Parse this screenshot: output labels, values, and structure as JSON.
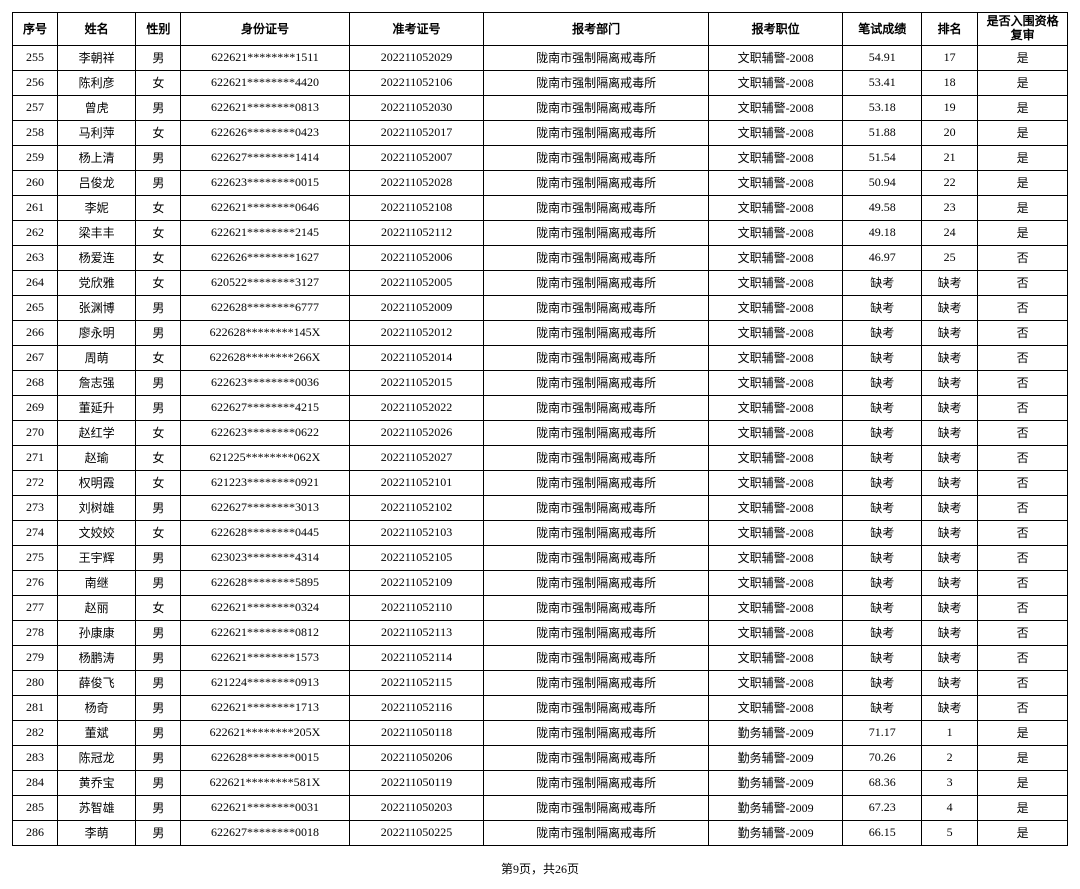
{
  "headers": {
    "seq": "序号",
    "name": "姓名",
    "sex": "性别",
    "id": "身份证号",
    "exam": "准考证号",
    "dept": "报考部门",
    "pos": "报考职位",
    "score": "笔试成绩",
    "rank": "排名",
    "pass": "是否入围资格复审"
  },
  "rows": [
    {
      "seq": "255",
      "name": "李朝祥",
      "sex": "男",
      "id": "622621********1511",
      "exam": "202211052029",
      "dept": "陇南市强制隔离戒毒所",
      "pos": "文职辅警-2008",
      "score": "54.91",
      "rank": "17",
      "pass": "是"
    },
    {
      "seq": "256",
      "name": "陈利彦",
      "sex": "女",
      "id": "622621********4420",
      "exam": "202211052106",
      "dept": "陇南市强制隔离戒毒所",
      "pos": "文职辅警-2008",
      "score": "53.41",
      "rank": "18",
      "pass": "是"
    },
    {
      "seq": "257",
      "name": "曾虎",
      "sex": "男",
      "id": "622621********0813",
      "exam": "202211052030",
      "dept": "陇南市强制隔离戒毒所",
      "pos": "文职辅警-2008",
      "score": "53.18",
      "rank": "19",
      "pass": "是"
    },
    {
      "seq": "258",
      "name": "马利萍",
      "sex": "女",
      "id": "622626********0423",
      "exam": "202211052017",
      "dept": "陇南市强制隔离戒毒所",
      "pos": "文职辅警-2008",
      "score": "51.88",
      "rank": "20",
      "pass": "是"
    },
    {
      "seq": "259",
      "name": "杨上清",
      "sex": "男",
      "id": "622627********1414",
      "exam": "202211052007",
      "dept": "陇南市强制隔离戒毒所",
      "pos": "文职辅警-2008",
      "score": "51.54",
      "rank": "21",
      "pass": "是"
    },
    {
      "seq": "260",
      "name": "吕俊龙",
      "sex": "男",
      "id": "622623********0015",
      "exam": "202211052028",
      "dept": "陇南市强制隔离戒毒所",
      "pos": "文职辅警-2008",
      "score": "50.94",
      "rank": "22",
      "pass": "是"
    },
    {
      "seq": "261",
      "name": "李妮",
      "sex": "女",
      "id": "622621********0646",
      "exam": "202211052108",
      "dept": "陇南市强制隔离戒毒所",
      "pos": "文职辅警-2008",
      "score": "49.58",
      "rank": "23",
      "pass": "是"
    },
    {
      "seq": "262",
      "name": "梁丰丰",
      "sex": "女",
      "id": "622621********2145",
      "exam": "202211052112",
      "dept": "陇南市强制隔离戒毒所",
      "pos": "文职辅警-2008",
      "score": "49.18",
      "rank": "24",
      "pass": "是"
    },
    {
      "seq": "263",
      "name": "杨爱连",
      "sex": "女",
      "id": "622626********1627",
      "exam": "202211052006",
      "dept": "陇南市强制隔离戒毒所",
      "pos": "文职辅警-2008",
      "score": "46.97",
      "rank": "25",
      "pass": "否"
    },
    {
      "seq": "264",
      "name": "党欣雅",
      "sex": "女",
      "id": "620522********3127",
      "exam": "202211052005",
      "dept": "陇南市强制隔离戒毒所",
      "pos": "文职辅警-2008",
      "score": "缺考",
      "rank": "缺考",
      "pass": "否"
    },
    {
      "seq": "265",
      "name": "张渊博",
      "sex": "男",
      "id": "622628********6777",
      "exam": "202211052009",
      "dept": "陇南市强制隔离戒毒所",
      "pos": "文职辅警-2008",
      "score": "缺考",
      "rank": "缺考",
      "pass": "否"
    },
    {
      "seq": "266",
      "name": "廖永明",
      "sex": "男",
      "id": "622628********145X",
      "exam": "202211052012",
      "dept": "陇南市强制隔离戒毒所",
      "pos": "文职辅警-2008",
      "score": "缺考",
      "rank": "缺考",
      "pass": "否"
    },
    {
      "seq": "267",
      "name": "周萌",
      "sex": "女",
      "id": "622628********266X",
      "exam": "202211052014",
      "dept": "陇南市强制隔离戒毒所",
      "pos": "文职辅警-2008",
      "score": "缺考",
      "rank": "缺考",
      "pass": "否"
    },
    {
      "seq": "268",
      "name": "詹志强",
      "sex": "男",
      "id": "622623********0036",
      "exam": "202211052015",
      "dept": "陇南市强制隔离戒毒所",
      "pos": "文职辅警-2008",
      "score": "缺考",
      "rank": "缺考",
      "pass": "否"
    },
    {
      "seq": "269",
      "name": "董延升",
      "sex": "男",
      "id": "622627********4215",
      "exam": "202211052022",
      "dept": "陇南市强制隔离戒毒所",
      "pos": "文职辅警-2008",
      "score": "缺考",
      "rank": "缺考",
      "pass": "否"
    },
    {
      "seq": "270",
      "name": "赵红学",
      "sex": "女",
      "id": "622623********0622",
      "exam": "202211052026",
      "dept": "陇南市强制隔离戒毒所",
      "pos": "文职辅警-2008",
      "score": "缺考",
      "rank": "缺考",
      "pass": "否"
    },
    {
      "seq": "271",
      "name": "赵瑜",
      "sex": "女",
      "id": "621225********062X",
      "exam": "202211052027",
      "dept": "陇南市强制隔离戒毒所",
      "pos": "文职辅警-2008",
      "score": "缺考",
      "rank": "缺考",
      "pass": "否"
    },
    {
      "seq": "272",
      "name": "权明霞",
      "sex": "女",
      "id": "621223********0921",
      "exam": "202211052101",
      "dept": "陇南市强制隔离戒毒所",
      "pos": "文职辅警-2008",
      "score": "缺考",
      "rank": "缺考",
      "pass": "否"
    },
    {
      "seq": "273",
      "name": "刘树雄",
      "sex": "男",
      "id": "622627********3013",
      "exam": "202211052102",
      "dept": "陇南市强制隔离戒毒所",
      "pos": "文职辅警-2008",
      "score": "缺考",
      "rank": "缺考",
      "pass": "否"
    },
    {
      "seq": "274",
      "name": "文姣姣",
      "sex": "女",
      "id": "622628********0445",
      "exam": "202211052103",
      "dept": "陇南市强制隔离戒毒所",
      "pos": "文职辅警-2008",
      "score": "缺考",
      "rank": "缺考",
      "pass": "否"
    },
    {
      "seq": "275",
      "name": "王宇辉",
      "sex": "男",
      "id": "623023********4314",
      "exam": "202211052105",
      "dept": "陇南市强制隔离戒毒所",
      "pos": "文职辅警-2008",
      "score": "缺考",
      "rank": "缺考",
      "pass": "否"
    },
    {
      "seq": "276",
      "name": "南继",
      "sex": "男",
      "id": "622628********5895",
      "exam": "202211052109",
      "dept": "陇南市强制隔离戒毒所",
      "pos": "文职辅警-2008",
      "score": "缺考",
      "rank": "缺考",
      "pass": "否"
    },
    {
      "seq": "277",
      "name": "赵丽",
      "sex": "女",
      "id": "622621********0324",
      "exam": "202211052110",
      "dept": "陇南市强制隔离戒毒所",
      "pos": "文职辅警-2008",
      "score": "缺考",
      "rank": "缺考",
      "pass": "否"
    },
    {
      "seq": "278",
      "name": "孙康康",
      "sex": "男",
      "id": "622621********0812",
      "exam": "202211052113",
      "dept": "陇南市强制隔离戒毒所",
      "pos": "文职辅警-2008",
      "score": "缺考",
      "rank": "缺考",
      "pass": "否"
    },
    {
      "seq": "279",
      "name": "杨鹏涛",
      "sex": "男",
      "id": "622621********1573",
      "exam": "202211052114",
      "dept": "陇南市强制隔离戒毒所",
      "pos": "文职辅警-2008",
      "score": "缺考",
      "rank": "缺考",
      "pass": "否"
    },
    {
      "seq": "280",
      "name": "薛俊飞",
      "sex": "男",
      "id": "621224********0913",
      "exam": "202211052115",
      "dept": "陇南市强制隔离戒毒所",
      "pos": "文职辅警-2008",
      "score": "缺考",
      "rank": "缺考",
      "pass": "否"
    },
    {
      "seq": "281",
      "name": "杨奇",
      "sex": "男",
      "id": "622621********1713",
      "exam": "202211052116",
      "dept": "陇南市强制隔离戒毒所",
      "pos": "文职辅警-2008",
      "score": "缺考",
      "rank": "缺考",
      "pass": "否"
    },
    {
      "seq": "282",
      "name": "董斌",
      "sex": "男",
      "id": "622621********205X",
      "exam": "202211050118",
      "dept": "陇南市强制隔离戒毒所",
      "pos": "勤务辅警-2009",
      "score": "71.17",
      "rank": "1",
      "pass": "是"
    },
    {
      "seq": "283",
      "name": "陈冠龙",
      "sex": "男",
      "id": "622628********0015",
      "exam": "202211050206",
      "dept": "陇南市强制隔离戒毒所",
      "pos": "勤务辅警-2009",
      "score": "70.26",
      "rank": "2",
      "pass": "是"
    },
    {
      "seq": "284",
      "name": "黄乔宝",
      "sex": "男",
      "id": "622621********581X",
      "exam": "202211050119",
      "dept": "陇南市强制隔离戒毒所",
      "pos": "勤务辅警-2009",
      "score": "68.36",
      "rank": "3",
      "pass": "是"
    },
    {
      "seq": "285",
      "name": "苏智雄",
      "sex": "男",
      "id": "622621********0031",
      "exam": "202211050203",
      "dept": "陇南市强制隔离戒毒所",
      "pos": "勤务辅警-2009",
      "score": "67.23",
      "rank": "4",
      "pass": "是"
    },
    {
      "seq": "286",
      "name": "李萌",
      "sex": "男",
      "id": "622627********0018",
      "exam": "202211050225",
      "dept": "陇南市强制隔离戒毒所",
      "pos": "勤务辅警-2009",
      "score": "66.15",
      "rank": "5",
      "pass": "是"
    }
  ],
  "footer": "第9页，共26页"
}
